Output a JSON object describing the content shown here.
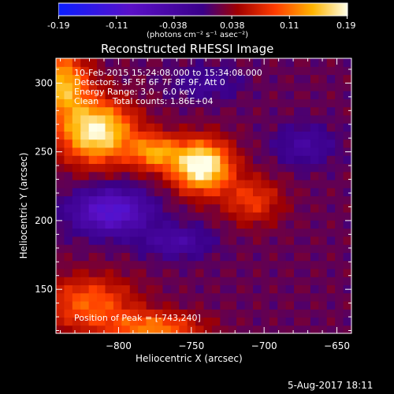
{
  "colorbar": {
    "min": -0.19,
    "max": 0.19,
    "tick_labels": [
      "-0.19",
      "-0.11",
      "-0.038",
      "0.038",
      "0.11",
      "0.19"
    ],
    "unit_label": "(photons cm⁻² s⁻¹ asec⁻²)"
  },
  "chart_data": {
    "type": "heatmap",
    "title": "Reconstructed RHESSI Image",
    "xlabel": "Heliocentric X (arcsec)",
    "ylabel": "Heliocentric Y (arcsec)",
    "xlim": [
      -843,
      -640
    ],
    "ylim": [
      118,
      318
    ],
    "xticks": [
      -800,
      -750,
      -700,
      -650
    ],
    "yticks": [
      150,
      200,
      250,
      300
    ],
    "annotations": [
      "10-Feb-2015 15:24:08.000 to 15:34:08.000",
      "Detectors: 3F 5F 6F 7F 8F 9F, Att 0",
      "Energy Range: 3.0 - 6.0 keV",
      "Clean     Total counts: 1.86E+04",
      "Position of Peak = [-743,240]"
    ],
    "peak": [
      -743,
      240
    ],
    "blobs": [
      {
        "x": -743,
        "y": 240,
        "sx": 14,
        "sy": 13,
        "amp": 0.19
      },
      {
        "x": -815,
        "y": 265,
        "sx": 18,
        "sy": 16,
        "amp": 0.17
      },
      {
        "x": -775,
        "y": 250,
        "sx": 12,
        "sy": 9,
        "amp": 0.11
      },
      {
        "x": -708,
        "y": 215,
        "sx": 14,
        "sy": 12,
        "amp": 0.07
      },
      {
        "x": -838,
        "y": 300,
        "sx": 12,
        "sy": 16,
        "amp": 0.13
      },
      {
        "x": -820,
        "y": 140,
        "sx": 22,
        "sy": 14,
        "amp": 0.09
      },
      {
        "x": -775,
        "y": 122,
        "sx": 22,
        "sy": 8,
        "amp": 0.1
      },
      {
        "x": -805,
        "y": 207,
        "sx": 18,
        "sy": 11,
        "amp": -0.13
      },
      {
        "x": -760,
        "y": 185,
        "sx": 16,
        "sy": 8,
        "amp": -0.06
      },
      {
        "x": -672,
        "y": 255,
        "sx": 14,
        "sy": 10,
        "amp": -0.05
      },
      {
        "x": -740,
        "y": 300,
        "sx": 16,
        "sy": 8,
        "amp": -0.04
      }
    ]
  },
  "footer": {
    "date": "5-Aug-2017 18:11"
  }
}
